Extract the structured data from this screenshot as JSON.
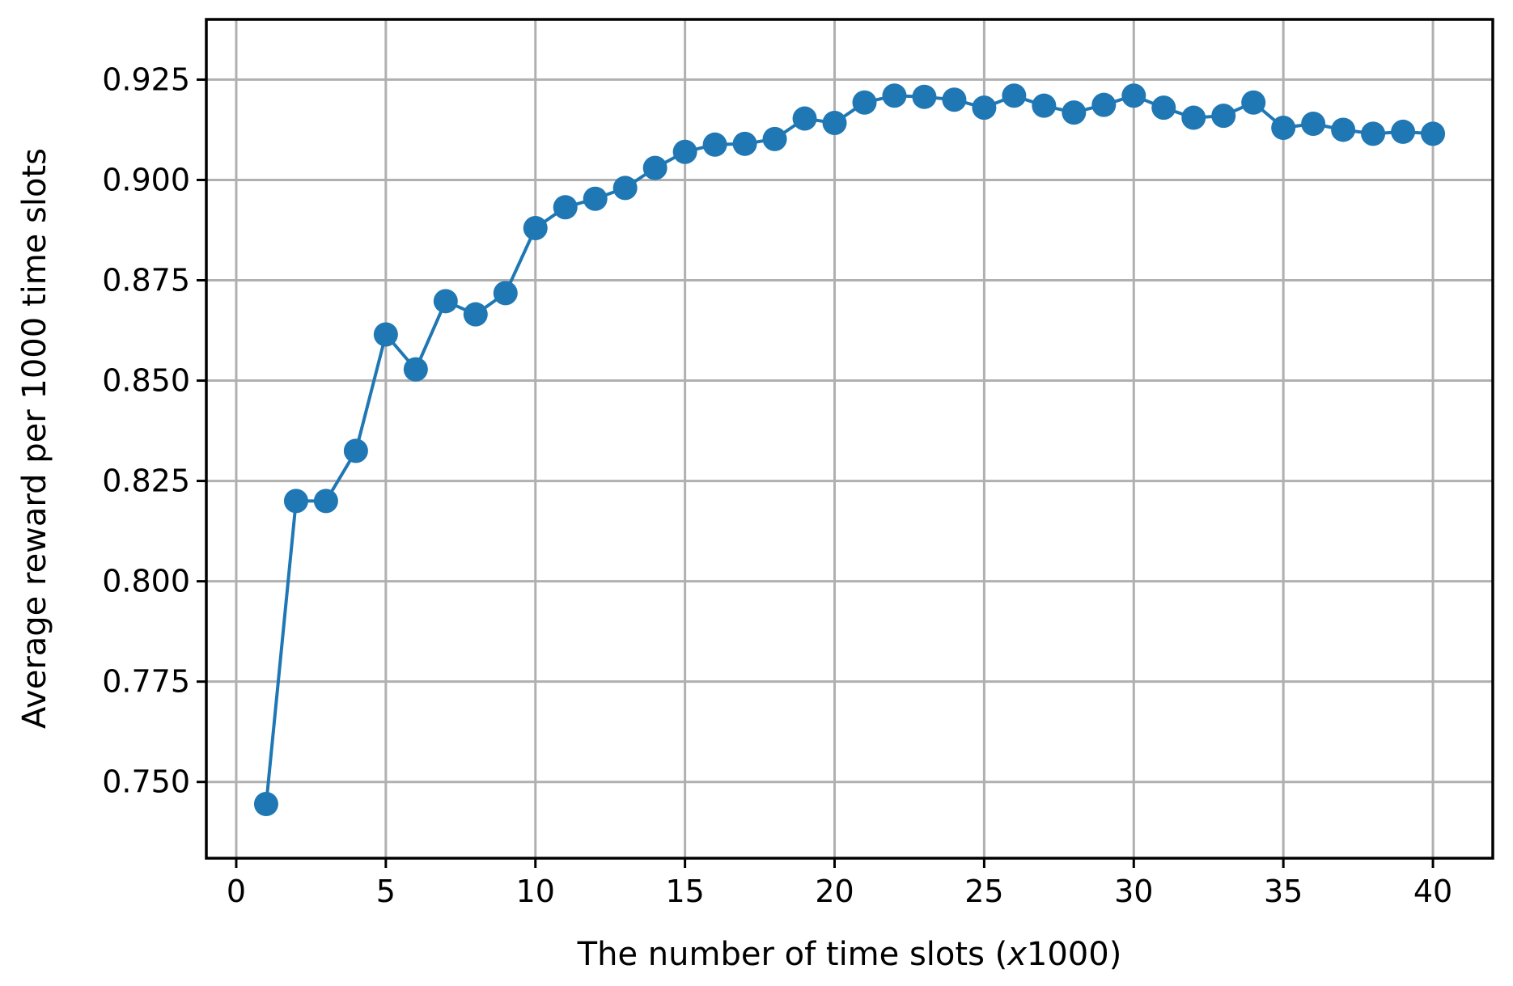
{
  "chart_data": {
    "type": "line",
    "title": "",
    "xlabel_main": "The number of time slots (",
    "xlabel_var": "x",
    "xlabel_tail": "1000)",
    "ylabel": "Average reward per 1000 time slots",
    "xlim": [
      -1,
      42
    ],
    "ylim": [
      0.731,
      0.94
    ],
    "xticks": [
      0,
      5,
      10,
      15,
      20,
      25,
      30,
      35,
      40
    ],
    "yticks": [
      0.75,
      0.775,
      0.8,
      0.825,
      0.85,
      0.875,
      0.9,
      0.925
    ],
    "ytick_labels": [
      "0.750",
      "0.775",
      "0.800",
      "0.825",
      "0.850",
      "0.875",
      "0.900",
      "0.925"
    ],
    "grid": true,
    "color": "#1f77b4",
    "series": [
      {
        "x": [
          1,
          2,
          3,
          4,
          5,
          6,
          7,
          8,
          9,
          10,
          11,
          12,
          13,
          14,
          15,
          16,
          17,
          18,
          19,
          20,
          21,
          22,
          23,
          24,
          25,
          26,
          27,
          28,
          29,
          30,
          31,
          32,
          33,
          34,
          35,
          36,
          37,
          38,
          39,
          40
        ],
        "values": [
          0.7445,
          0.82,
          0.82,
          0.8325,
          0.8615,
          0.8528,
          0.8698,
          0.8665,
          0.8718,
          0.888,
          0.8932,
          0.8953,
          0.898,
          0.903,
          0.907,
          0.9088,
          0.909,
          0.9102,
          0.9153,
          0.9142,
          0.9193,
          0.921,
          0.9207,
          0.92,
          0.918,
          0.921,
          0.9185,
          0.9168,
          0.9187,
          0.921,
          0.918,
          0.9155,
          0.916,
          0.9193,
          0.913,
          0.914,
          0.9125,
          0.9115,
          0.912,
          0.9115
        ]
      }
    ]
  }
}
